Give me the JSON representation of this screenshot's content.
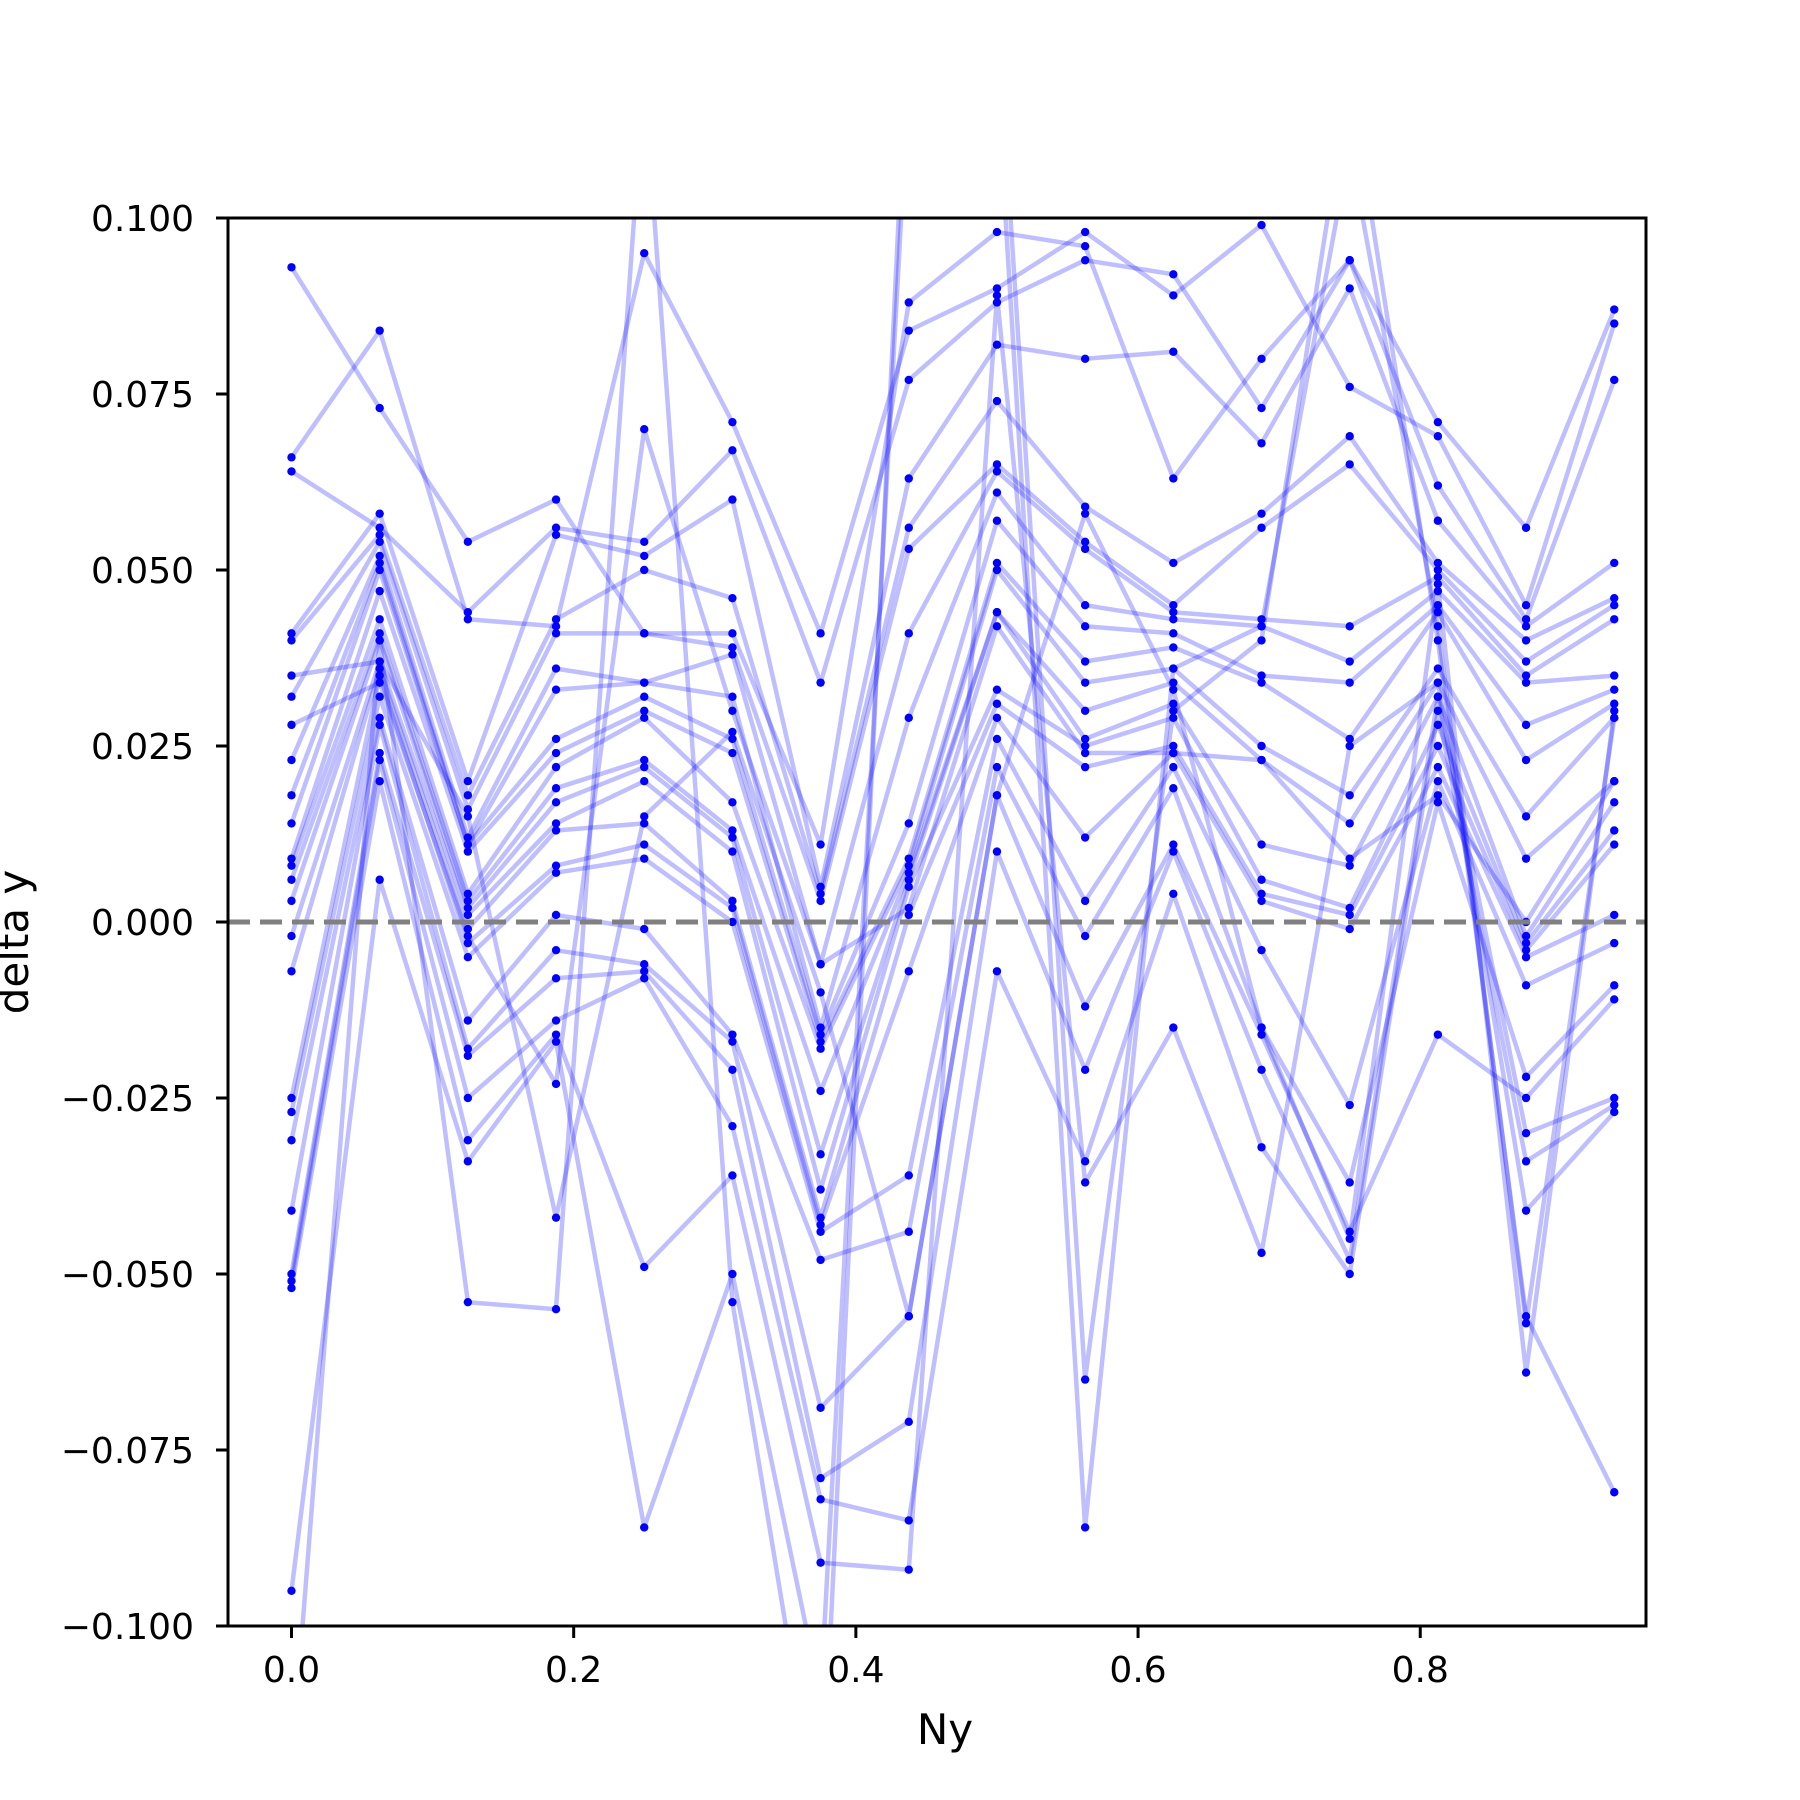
{
  "chart_data": {
    "type": "line",
    "title": "",
    "xlabel": "Ny",
    "ylabel": "delta y",
    "xlim": [
      -0.045,
      0.96
    ],
    "ylim": [
      -0.1,
      0.1
    ],
    "x_ticks": [
      "0.0",
      "0.2",
      "0.4",
      "0.6",
      "0.8"
    ],
    "x_tick_values": [
      0.0,
      0.2,
      0.4,
      0.6,
      0.8
    ],
    "y_ticks": [
      "−0.100",
      "−0.075",
      "−0.050",
      "−0.025",
      "0.000",
      "0.025",
      "0.050",
      "0.075",
      "0.100"
    ],
    "y_tick_values": [
      -0.1,
      -0.075,
      -0.05,
      -0.025,
      0.0,
      0.025,
      0.05,
      0.075,
      0.1
    ],
    "grid": false,
    "reference_line": {
      "y": 0.0,
      "style": "dashed",
      "color": "#808080"
    },
    "line_color": "#0000ff",
    "line_alpha": 0.25,
    "marker_color": "#0000ff",
    "x": [
      0.0,
      0.0625,
      0.125,
      0.1875,
      0.25,
      0.3125,
      0.375,
      0.4375,
      0.5,
      0.5625,
      0.625,
      0.6875,
      0.75,
      0.8125,
      0.875,
      0.9375
    ],
    "series": [
      {
        "values": [
          0.093,
          0.073,
          0.054,
          0.06,
          0.041,
          0.041,
          0.011,
          0.088,
          0.098,
          0.096,
          0.063,
          0.08,
          0.094,
          0.071,
          0.056,
          0.087
        ]
      },
      {
        "values": [
          0.066,
          0.084,
          0.043,
          0.042,
          0.095,
          0.071,
          0.041,
          0.084,
          0.09,
          0.098,
          0.089,
          0.099,
          0.076,
          0.069,
          0.045,
          0.085
        ]
      },
      {
        "values": [
          0.064,
          0.056,
          0.044,
          0.056,
          0.054,
          0.067,
          0.034,
          0.077,
          0.088,
          0.094,
          0.092,
          0.073,
          0.094,
          0.062,
          0.043,
          0.077
        ]
      },
      {
        "values": [
          0.041,
          0.058,
          0.02,
          0.055,
          0.052,
          0.06,
          0.005,
          0.063,
          0.082,
          0.08,
          0.081,
          0.068,
          0.09,
          0.057,
          0.042,
          0.051
        ]
      },
      {
        "values": [
          0.04,
          0.055,
          0.018,
          0.043,
          0.05,
          0.046,
          0.004,
          0.056,
          0.074,
          0.059,
          0.051,
          0.058,
          0.069,
          0.051,
          0.04,
          0.046
        ]
      },
      {
        "values": [
          0.032,
          0.054,
          0.016,
          0.041,
          0.041,
          0.039,
          0.003,
          0.053,
          0.065,
          0.054,
          0.045,
          0.056,
          0.065,
          0.05,
          0.037,
          0.045
        ]
      },
      {
        "values": [
          0.023,
          0.052,
          0.012,
          0.036,
          0.034,
          0.038,
          -0.006,
          0.041,
          0.064,
          0.053,
          0.044,
          0.043,
          0.042,
          0.049,
          0.035,
          0.043
        ]
      },
      {
        "values": [
          0.018,
          0.051,
          0.011,
          0.033,
          0.034,
          0.032,
          -0.015,
          0.029,
          0.061,
          0.045,
          0.043,
          0.042,
          0.037,
          0.047,
          0.034,
          0.035
        ]
      },
      {
        "values": [
          0.014,
          0.05,
          0.011,
          0.026,
          0.032,
          0.026,
          -0.016,
          0.014,
          0.057,
          0.042,
          0.041,
          0.035,
          0.034,
          0.045,
          0.028,
          0.033
        ]
      },
      {
        "values": [
          0.009,
          0.047,
          0.01,
          0.024,
          0.03,
          0.024,
          -0.017,
          0.009,
          0.051,
          0.037,
          0.039,
          0.034,
          0.026,
          0.044,
          0.023,
          0.031
        ]
      },
      {
        "values": [
          0.008,
          0.043,
          0.004,
          0.022,
          0.029,
          0.017,
          -0.018,
          0.008,
          0.05,
          0.034,
          0.036,
          0.025,
          0.018,
          0.036,
          0.015,
          0.029
        ]
      },
      {
        "values": [
          0.006,
          0.041,
          0.003,
          0.019,
          0.023,
          0.013,
          -0.024,
          0.007,
          0.044,
          0.03,
          0.034,
          0.023,
          0.014,
          0.034,
          0.009,
          0.02
        ]
      },
      {
        "values": [
          0.003,
          0.04,
          0.002,
          0.017,
          0.022,
          0.012,
          -0.033,
          0.006,
          0.044,
          0.026,
          0.031,
          0.011,
          0.008,
          0.032,
          -0.002,
          0.017
        ]
      },
      {
        "values": [
          -0.002,
          0.037,
          0.001,
          0.014,
          0.02,
          0.01,
          -0.038,
          0.005,
          0.033,
          0.025,
          0.029,
          0.006,
          0.002,
          0.028,
          -0.003,
          0.013
        ]
      },
      {
        "values": [
          -0.007,
          0.036,
          -0.001,
          0.013,
          0.014,
          0.003,
          -0.042,
          0.001,
          0.031,
          0.022,
          0.025,
          0.004,
          0.001,
          0.025,
          -0.004,
          0.011
        ]
      },
      {
        "values": [
          -0.025,
          0.035,
          -0.003,
          0.008,
          0.011,
          0.002,
          -0.043,
          -0.007,
          0.029,
          0.012,
          0.024,
          0.003,
          -0.001,
          0.022,
          -0.005,
          0.001
        ]
      },
      {
        "values": [
          -0.027,
          0.032,
          -0.005,
          0.007,
          0.009,
          0.0,
          -0.044,
          -0.036,
          0.026,
          0.003,
          0.022,
          -0.004,
          -0.026,
          0.02,
          -0.009,
          -0.003
        ]
      },
      {
        "values": [
          -0.031,
          0.029,
          -0.014,
          0.001,
          -0.001,
          -0.016,
          -0.048,
          -0.044,
          0.022,
          -0.002,
          0.019,
          -0.015,
          -0.037,
          0.017,
          -0.022,
          -0.009
        ]
      },
      {
        "values": [
          -0.041,
          0.028,
          -0.018,
          -0.004,
          -0.006,
          -0.017,
          -0.069,
          -0.056,
          0.018,
          -0.012,
          0.011,
          -0.016,
          -0.044,
          -0.016,
          -0.025,
          -0.011
        ]
      },
      {
        "values": [
          -0.05,
          0.024,
          -0.019,
          -0.008,
          -0.007,
          -0.021,
          -0.079,
          -0.071,
          0.01,
          -0.021,
          0.01,
          -0.021,
          -0.048,
          0.032,
          -0.03,
          -0.025
        ]
      },
      {
        "values": [
          -0.051,
          0.023,
          -0.025,
          -0.014,
          -0.008,
          -0.029,
          -0.082,
          -0.085,
          -0.007,
          -0.034,
          0.004,
          -0.032,
          -0.05,
          0.03,
          -0.034,
          -0.026
        ]
      },
      {
        "values": [
          -0.052,
          0.02,
          -0.031,
          -0.016,
          -0.049,
          -0.036,
          -0.091,
          -0.092,
          0.089,
          -0.037,
          -0.015,
          -0.047,
          0.025,
          0.034,
          -0.041,
          -0.027
        ]
      },
      {
        "values": [
          -0.095,
          0.006,
          -0.034,
          -0.017,
          -0.086,
          -0.05,
          -0.11,
          0.12,
          0.13,
          -0.065,
          0.03,
          0.04,
          0.12,
          0.04,
          -0.056,
          -0.081
        ]
      },
      {
        "values": [
          -0.12,
          0.04,
          -0.054,
          -0.055,
          0.12,
          -0.054,
          -0.13,
          0.13,
          0.12,
          -0.086,
          0.036,
          0.042,
          0.11,
          0.042,
          -0.057,
          0.029
        ]
      },
      {
        "values": [
          0.035,
          0.037,
          0.015,
          -0.042,
          0.015,
          0.027,
          -0.01,
          -0.056,
          0.018,
          0.058,
          0.033,
          -0.015,
          -0.045,
          0.048,
          -0.064,
          0.03
        ]
      },
      {
        "values": [
          0.028,
          0.034,
          -0.002,
          -0.023,
          0.07,
          0.03,
          -0.006,
          0.002,
          0.042,
          0.024,
          0.024,
          0.023,
          0.009,
          0.018,
          0.0,
          0.02
        ]
      }
    ]
  }
}
